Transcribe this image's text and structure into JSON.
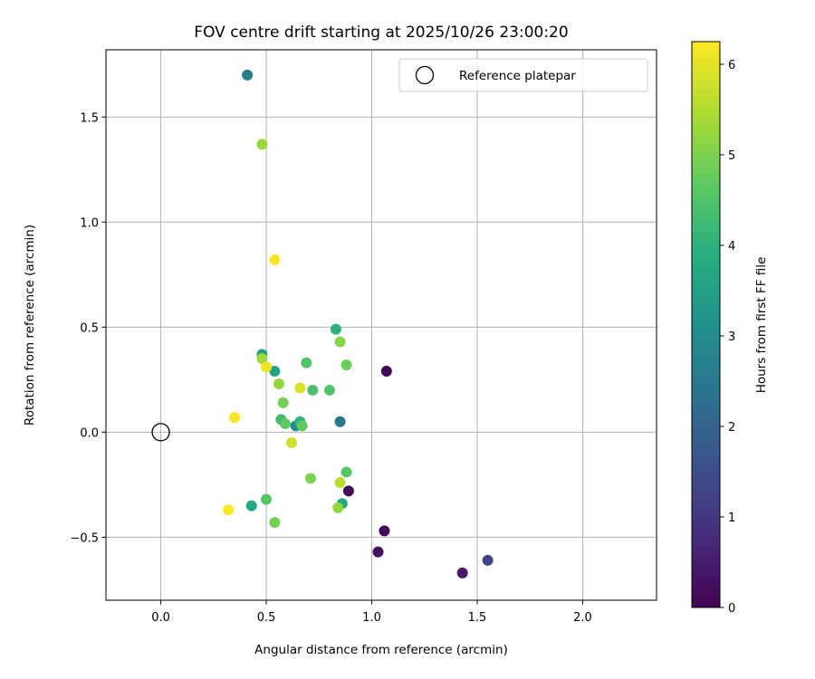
{
  "chart_data": {
    "type": "scatter",
    "title": "FOV centre drift starting at 2025/10/26 23:00:20",
    "xlabel": "Angular distance from reference (arcmin)",
    "ylabel": "Rotation from reference (arcmin)",
    "xlim": [
      -0.26,
      2.35
    ],
    "ylim": [
      -0.8,
      1.82
    ],
    "xticks": [
      0.0,
      0.5,
      1.0,
      1.5,
      2.0
    ],
    "xtick_labels": [
      "0.0",
      "0.5",
      "1.0",
      "1.5",
      "2.0"
    ],
    "yticks": [
      -0.5,
      0.0,
      0.5,
      1.0,
      1.5
    ],
    "ytick_labels": [
      "−0.5",
      "0.0",
      "0.5",
      "1.0",
      "1.5"
    ],
    "grid": true,
    "colormap": "viridis",
    "colorbar": {
      "label": "Hours from first FF file",
      "range": [
        0,
        6.25
      ],
      "ticks": [
        0,
        1,
        2,
        3,
        4,
        5,
        6
      ],
      "tick_labels": [
        "0",
        "1",
        "2",
        "3",
        "4",
        "5",
        "6"
      ]
    },
    "legend": {
      "location": "top-right",
      "entries": [
        {
          "label": "Reference platepar",
          "marker": "open-circle"
        }
      ]
    },
    "reference_point": {
      "x": 0.0,
      "y": 0.0
    },
    "points": [
      {
        "x": 1.07,
        "y": 0.29,
        "hours": 0.05
      },
      {
        "x": 0.89,
        "y": -0.28,
        "hours": 0.1
      },
      {
        "x": 1.06,
        "y": -0.47,
        "hours": 0.15
      },
      {
        "x": 1.03,
        "y": -0.57,
        "hours": 0.25
      },
      {
        "x": 1.43,
        "y": -0.67,
        "hours": 0.45
      },
      {
        "x": 1.55,
        "y": -0.61,
        "hours": 1.2
      },
      {
        "x": 0.41,
        "y": 1.7,
        "hours": 2.6
      },
      {
        "x": 0.85,
        "y": 0.05,
        "hours": 2.5
      },
      {
        "x": 0.64,
        "y": 0.03,
        "hours": 3.0
      },
      {
        "x": 0.48,
        "y": 0.37,
        "hours": 3.5
      },
      {
        "x": 0.54,
        "y": 0.29,
        "hours": 3.6
      },
      {
        "x": 0.43,
        "y": -0.35,
        "hours": 3.7
      },
      {
        "x": 0.86,
        "y": -0.34,
        "hours": 3.8
      },
      {
        "x": 0.83,
        "y": 0.49,
        "hours": 4.0
      },
      {
        "x": 0.66,
        "y": 0.05,
        "hours": 4.1
      },
      {
        "x": 0.57,
        "y": 0.06,
        "hours": 4.3
      },
      {
        "x": 0.72,
        "y": 0.2,
        "hours": 4.4
      },
      {
        "x": 0.69,
        "y": 0.33,
        "hours": 4.5
      },
      {
        "x": 0.8,
        "y": 0.2,
        "hours": 4.5
      },
      {
        "x": 0.5,
        "y": -0.32,
        "hours": 4.6
      },
      {
        "x": 0.88,
        "y": -0.19,
        "hours": 4.6
      },
      {
        "x": 0.59,
        "y": 0.04,
        "hours": 4.7
      },
      {
        "x": 0.67,
        "y": 0.03,
        "hours": 4.7
      },
      {
        "x": 0.88,
        "y": 0.32,
        "hours": 4.8
      },
      {
        "x": 0.58,
        "y": 0.14,
        "hours": 4.9
      },
      {
        "x": 0.54,
        "y": -0.43,
        "hours": 4.9
      },
      {
        "x": 0.71,
        "y": -0.22,
        "hours": 5.0
      },
      {
        "x": 0.85,
        "y": 0.43,
        "hours": 5.1
      },
      {
        "x": 0.56,
        "y": 0.23,
        "hours": 5.2
      },
      {
        "x": 0.84,
        "y": -0.36,
        "hours": 5.2
      },
      {
        "x": 0.48,
        "y": 0.35,
        "hours": 5.3
      },
      {
        "x": 0.48,
        "y": 1.37,
        "hours": 5.3
      },
      {
        "x": 0.85,
        "y": -0.24,
        "hours": 5.6
      },
      {
        "x": 0.62,
        "y": -0.05,
        "hours": 5.8
      },
      {
        "x": 0.66,
        "y": 0.21,
        "hours": 5.9
      },
      {
        "x": 0.5,
        "y": 0.31,
        "hours": 6.1
      },
      {
        "x": 0.54,
        "y": 0.82,
        "hours": 6.2
      },
      {
        "x": 0.35,
        "y": 0.07,
        "hours": 6.2
      },
      {
        "x": 0.32,
        "y": -0.37,
        "hours": 6.2
      }
    ]
  }
}
